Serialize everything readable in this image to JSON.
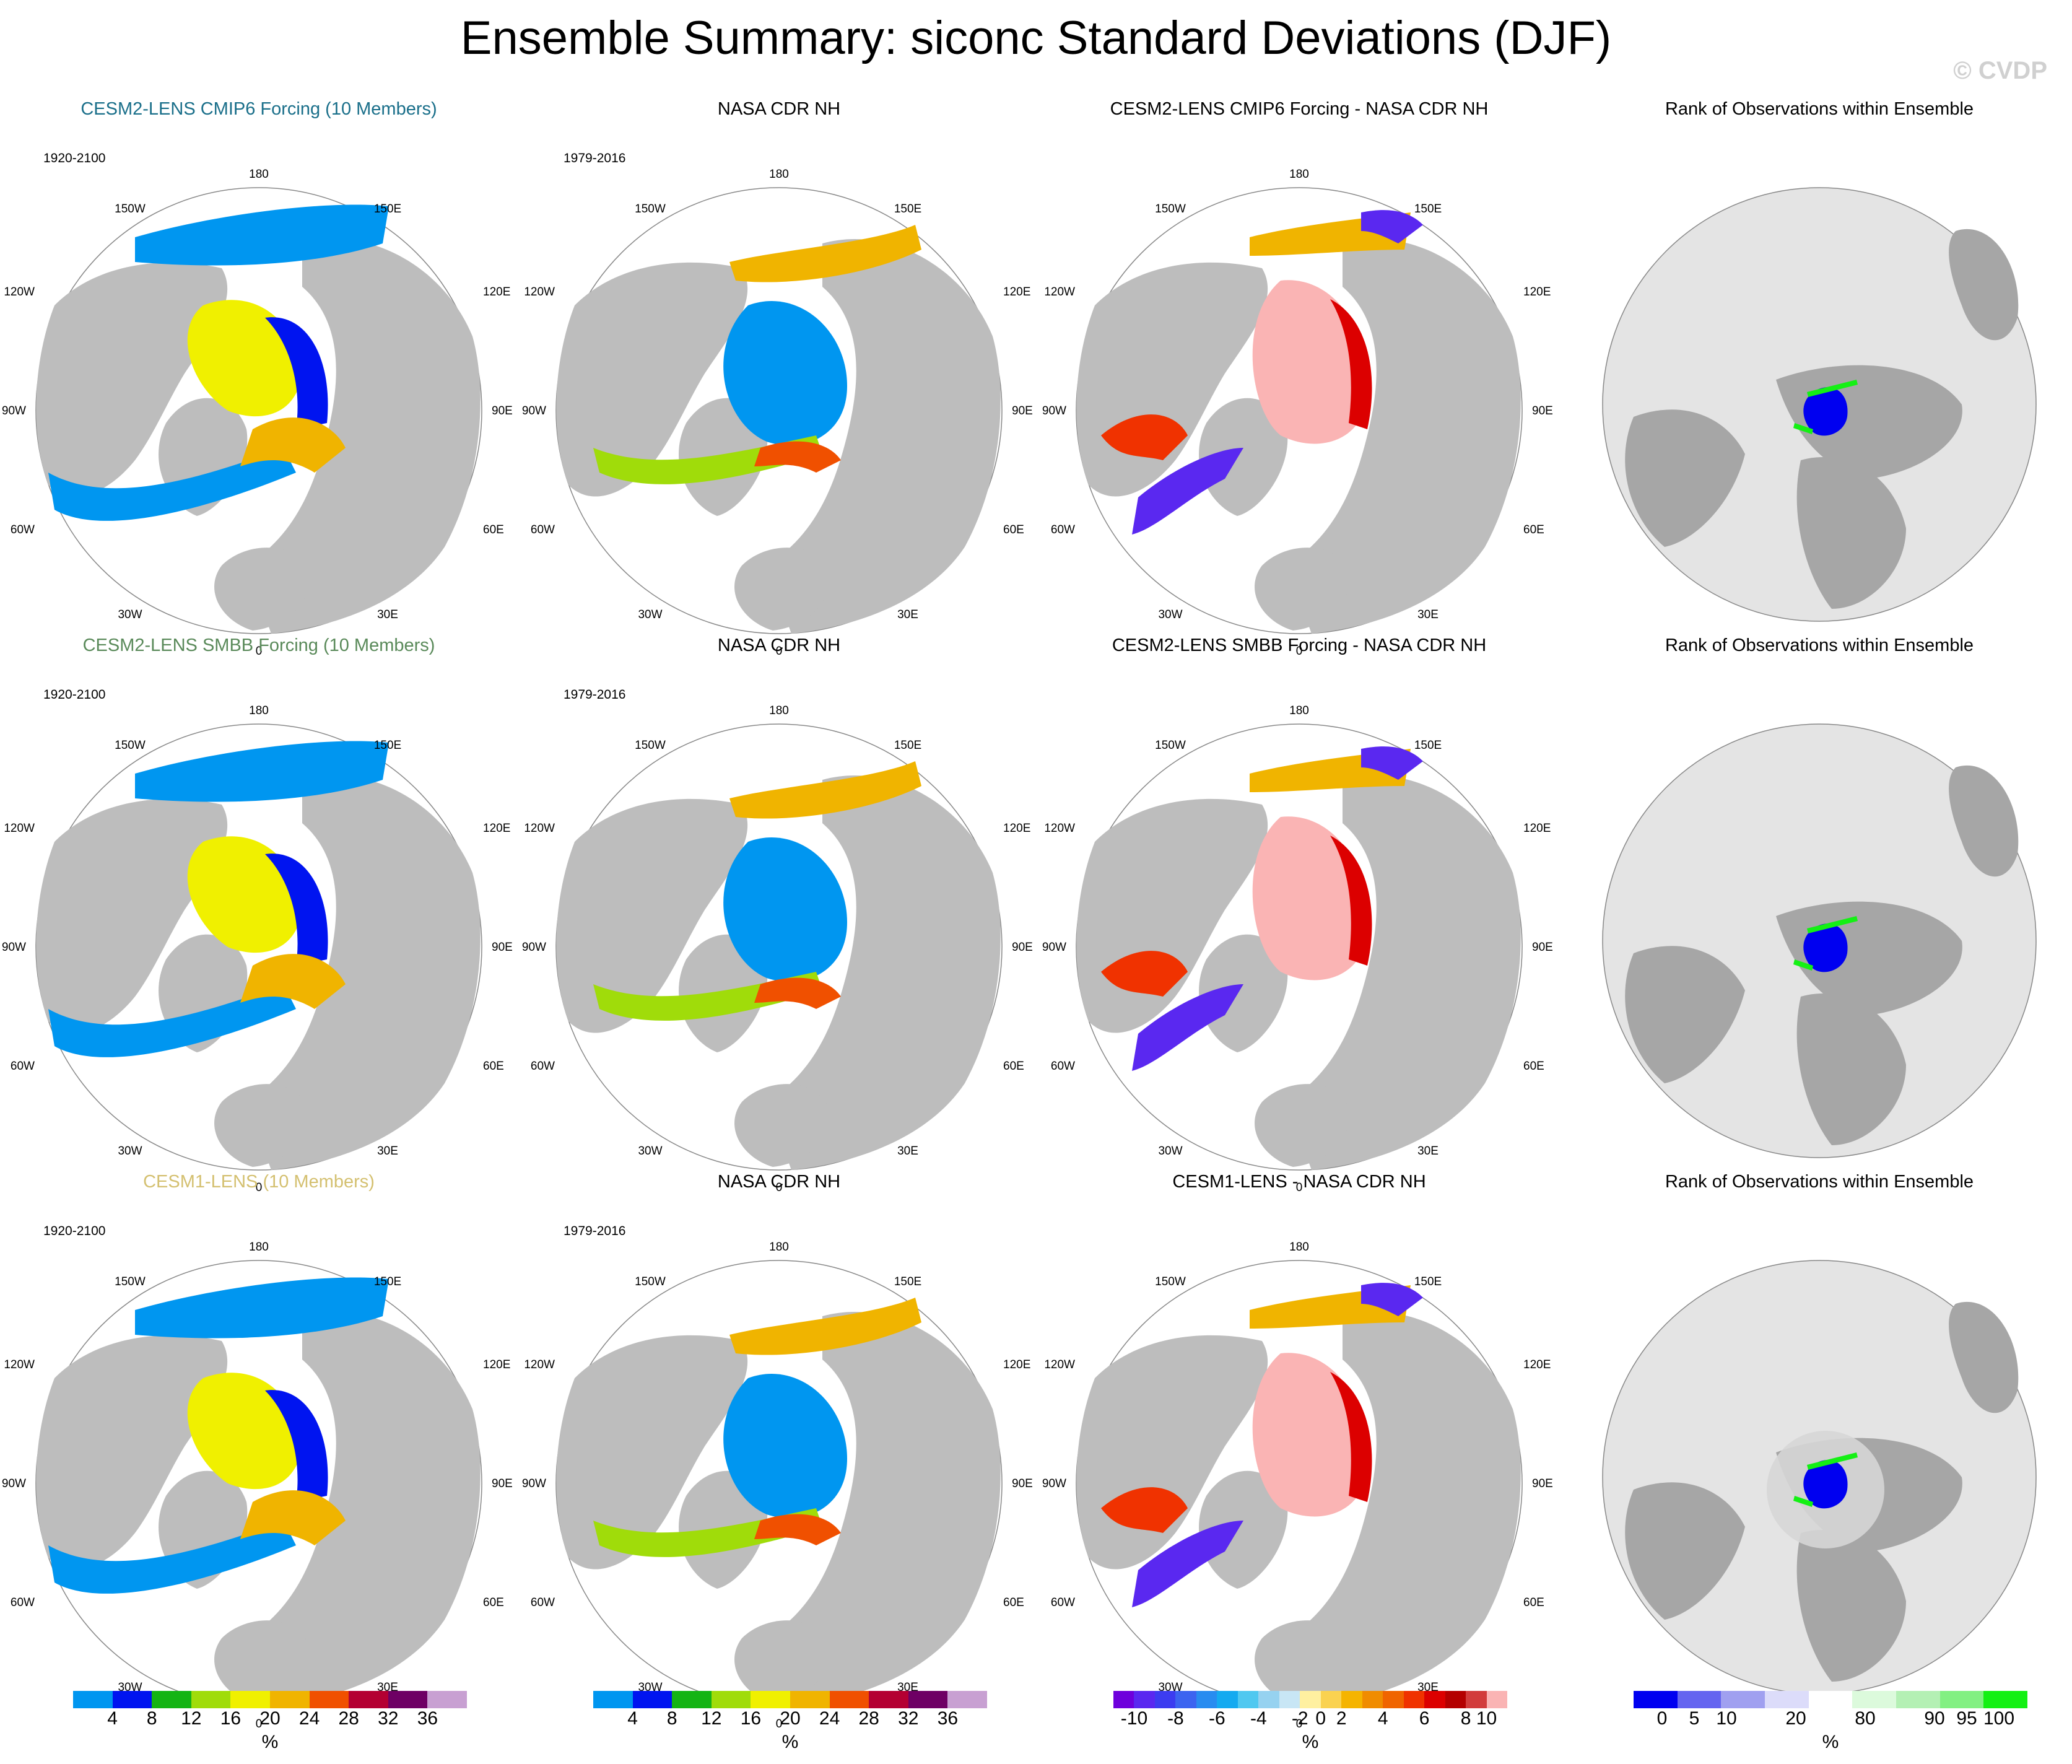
{
  "header": {
    "title": "Ensemble Summary: siconc Standard Deviations (DJF)",
    "watermark": "© CVDP"
  },
  "lon_labels": {
    "n": "180",
    "nw": "150W",
    "ne": "150E",
    "wnw": "120W",
    "ene": "120E",
    "w": "90W",
    "e": "90E",
    "wsw": "60W",
    "esw": "60E",
    "sw": "30W",
    "se": "30E",
    "s": "0"
  },
  "rows": [
    {
      "model": {
        "title": "CESM2-LENS CMIP6 Forcing (10 Members)",
        "color": "#1a6f8a",
        "period": "1920-2100"
      },
      "obs": {
        "title": "NASA CDR NH",
        "period": "1979-2016"
      },
      "diff": {
        "title": "CESM2-LENS CMIP6 Forcing - NASA CDR NH"
      },
      "rank": {
        "title": "Rank of Observations within Ensemble"
      }
    },
    {
      "model": {
        "title": "CESM2-LENS SMBB Forcing (10 Members)",
        "color": "#5a8a5a",
        "period": "1920-2100"
      },
      "obs": {
        "title": "NASA CDR NH",
        "period": "1979-2016"
      },
      "diff": {
        "title": "CESM2-LENS SMBB Forcing - NASA CDR NH"
      },
      "rank": {
        "title": "Rank of Observations within Ensemble"
      }
    },
    {
      "model": {
        "title": "CESM1-LENS (10 Members)",
        "color": "#d4c070",
        "period": "1920-2100"
      },
      "obs": {
        "title": "NASA CDR NH",
        "period": "1979-2016"
      },
      "diff": {
        "title": "CESM1-LENS - NASA CDR NH"
      },
      "rank": {
        "title": "Rank of Observations within Ensemble"
      }
    }
  ],
  "colorbars": {
    "std": {
      "colors": [
        "#0096f0",
        "#0014f0",
        "#14b414",
        "#a0dc0a",
        "#f0f000",
        "#f0b400",
        "#f05000",
        "#b40032",
        "#6e0064",
        "#c8a0d2"
      ],
      "ticks": [
        "4",
        "8",
        "12",
        "16",
        "20",
        "24",
        "28",
        "32",
        "36"
      ],
      "unit": "%"
    },
    "diff": {
      "colors": [
        "#6e00dc",
        "#5a28f0",
        "#3c3cf0",
        "#3c64f0",
        "#288cf0",
        "#14aaf0",
        "#50c8f0",
        "#96d2f0",
        "#c8e6f5",
        "#fff0a0",
        "#fad250",
        "#f5b400",
        "#f08c00",
        "#f06400",
        "#f03200",
        "#dc0000",
        "#b40000",
        "#d23c3c",
        "#fab4b4"
      ],
      "ticks": [
        "-10",
        "-8",
        "-6",
        "-4",
        "-2",
        "0",
        "2",
        "4",
        "6",
        "8",
        "10"
      ],
      "unit": "%"
    },
    "rank": {
      "colors": [
        "#0000f0",
        "#6464f0",
        "#a0a0f0",
        "#dcdcfa",
        "#ffffff",
        "#dcfadc",
        "#b4f0b4",
        "#82f082",
        "#14f014"
      ],
      "ticks": [
        "0",
        "5",
        "10",
        "20",
        "80",
        "90",
        "95",
        "100"
      ],
      "unit": "%"
    }
  }
}
